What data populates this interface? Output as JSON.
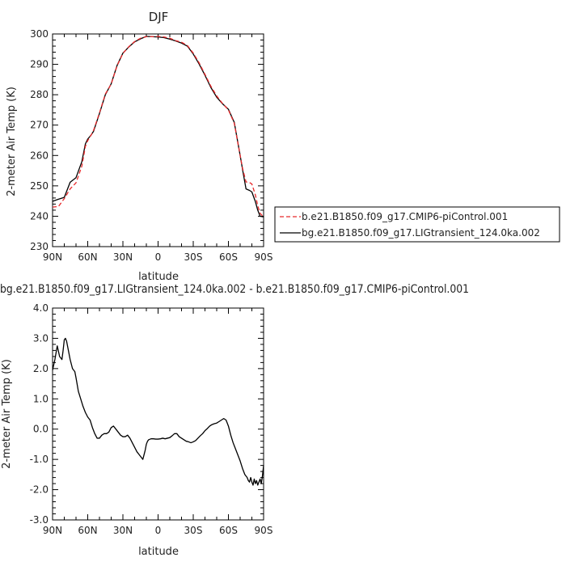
{
  "chart_data": [
    {
      "type": "line",
      "title": "DJF",
      "xlabel": "latitude",
      "ylabel": "2-meter Air Temp (K)",
      "xlim": [
        90,
        -90
      ],
      "ylim": [
        230,
        300
      ],
      "x_ticks": [
        {
          "value": 90,
          "label": "90N"
        },
        {
          "value": 60,
          "label": "60N"
        },
        {
          "value": 30,
          "label": "30N"
        },
        {
          "value": 0,
          "label": "0"
        },
        {
          "value": -30,
          "label": "30S"
        },
        {
          "value": -60,
          "label": "60S"
        },
        {
          "value": -90,
          "label": "90S"
        }
      ],
      "y_ticks": [
        {
          "value": 230,
          "label": "230"
        },
        {
          "value": 240,
          "label": "240"
        },
        {
          "value": 250,
          "label": "250"
        },
        {
          "value": 260,
          "label": "260"
        },
        {
          "value": 270,
          "label": "270"
        },
        {
          "value": 280,
          "label": "280"
        },
        {
          "value": 290,
          "label": "290"
        },
        {
          "value": 300,
          "label": "300"
        }
      ],
      "legend_position": "right",
      "series": [
        {
          "name": "b.e21.B1850.f09_g17.CMIP6-piControl.001",
          "color": "#e8292b",
          "dashed": true,
          "x": [
            90,
            85,
            80,
            75,
            70,
            65,
            62,
            60,
            57,
            55,
            50,
            45,
            40,
            35,
            30,
            25,
            20,
            15,
            10,
            5,
            0,
            -5,
            -10,
            -15,
            -20,
            -25,
            -30,
            -35,
            -40,
            -45,
            -50,
            -55,
            -60,
            -65,
            -70,
            -72,
            -75,
            -78,
            -80,
            -83,
            -85,
            -87,
            -90
          ],
          "y": [
            243.0,
            243.2,
            245.8,
            249.0,
            251.0,
            256.5,
            263.0,
            264.9,
            266.8,
            268.3,
            274.0,
            280.2,
            283.5,
            289.5,
            293.6,
            295.8,
            297.5,
            298.6,
            299.1,
            299.1,
            299.2,
            299.0,
            298.6,
            297.8,
            297.3,
            296.2,
            293.7,
            290.5,
            286.7,
            282.8,
            279.6,
            277.1,
            275.0,
            270.6,
            260.0,
            255.9,
            251.3,
            251.1,
            250.6,
            247.0,
            243.5,
            241.0,
            239.7
          ]
        },
        {
          "name": "bg.e21.B1850.f09_g17.LIGtransient_124.0ka.002",
          "color": "#000000",
          "dashed": false,
          "x": [
            90,
            85,
            80,
            75,
            70,
            65,
            62,
            60,
            57,
            55,
            50,
            45,
            40,
            35,
            30,
            25,
            20,
            15,
            10,
            5,
            0,
            -5,
            -10,
            -15,
            -20,
            -25,
            -30,
            -35,
            -40,
            -45,
            -50,
            -55,
            -60,
            -65,
            -70,
            -72,
            -75,
            -78,
            -80,
            -83,
            -85,
            -87,
            -90
          ],
          "y": [
            244.9,
            245.6,
            246.2,
            251.2,
            252.7,
            258.0,
            263.8,
            265.4,
            266.8,
            268.0,
            273.8,
            280.0,
            283.6,
            289.6,
            293.7,
            295.7,
            297.4,
            298.4,
            299.2,
            299.1,
            299.0,
            298.8,
            298.3,
            297.7,
            297.0,
            296.0,
            293.4,
            290.1,
            286.4,
            282.4,
            279.2,
            277.0,
            275.2,
            270.9,
            260.0,
            255.5,
            249.0,
            248.5,
            248.0,
            244.8,
            242.0,
            240.0,
            239.8
          ]
        }
      ]
    },
    {
      "type": "line",
      "title": "bg.e21.B1850.f09_g17.LIGtransient_124.0ka.002 - b.e21.B1850.f09_g17.CMIP6-piControl.001",
      "xlabel": "latitude",
      "ylabel": "2-meter Air Temp (K)",
      "xlim": [
        90,
        -90
      ],
      "ylim": [
        -3.0,
        4.0
      ],
      "x_ticks": [
        {
          "value": 90,
          "label": "90N"
        },
        {
          "value": 60,
          "label": "60N"
        },
        {
          "value": 30,
          "label": "30N"
        },
        {
          "value": 0,
          "label": "0"
        },
        {
          "value": -30,
          "label": "30S"
        },
        {
          "value": -60,
          "label": "60S"
        },
        {
          "value": -90,
          "label": "90S"
        }
      ],
      "y_ticks": [
        {
          "value": -3.0,
          "label": "-3.0"
        },
        {
          "value": -2.0,
          "label": "-2.0"
        },
        {
          "value": -1.0,
          "label": "-1.0"
        },
        {
          "value": 0.0,
          "label": "0.0"
        },
        {
          "value": 1.0,
          "label": "1.0"
        },
        {
          "value": 2.0,
          "label": "2.0"
        },
        {
          "value": 3.0,
          "label": "3.0"
        },
        {
          "value": 4.0,
          "label": "4.0"
        }
      ],
      "series": [
        {
          "color": "#000000",
          "dashed": false,
          "x": [
            90,
            88,
            86,
            84,
            82,
            81,
            80,
            79,
            78,
            77,
            76,
            75,
            74,
            73,
            72,
            71,
            70,
            68,
            66,
            64,
            62,
            60,
            58,
            56,
            54,
            52,
            50,
            48,
            46,
            44,
            42,
            40,
            38,
            36,
            34,
            32,
            30,
            28,
            26,
            24,
            22,
            20,
            18,
            16,
            15,
            14,
            13,
            12,
            11,
            10,
            9,
            8,
            6,
            4,
            2,
            0,
            -2,
            -4,
            -6,
            -8,
            -10,
            -12,
            -14,
            -16,
            -18,
            -20,
            -22,
            -24,
            -26,
            -28,
            -30,
            -32,
            -34,
            -36,
            -38,
            -40,
            -42,
            -44,
            -46,
            -48,
            -50,
            -52,
            -54,
            -56,
            -58,
            -60,
            -62,
            -64,
            -66,
            -68,
            -70,
            -72,
            -74,
            -76,
            -77,
            -78,
            -79,
            -80,
            -81,
            -82,
            -83,
            -84,
            -85,
            -86,
            -87,
            -88,
            -89,
            -90
          ],
          "y": [
            1.95,
            2.3,
            2.75,
            2.4,
            2.3,
            2.6,
            2.95,
            3.0,
            2.9,
            2.7,
            2.5,
            2.3,
            2.15,
            2.0,
            1.95,
            1.9,
            1.7,
            1.25,
            1.0,
            0.75,
            0.55,
            0.4,
            0.3,
            0.05,
            -0.15,
            -0.3,
            -0.3,
            -0.2,
            -0.15,
            -0.15,
            -0.1,
            0.05,
            0.1,
            0.0,
            -0.1,
            -0.2,
            -0.25,
            -0.25,
            -0.2,
            -0.3,
            -0.45,
            -0.6,
            -0.75,
            -0.85,
            -0.9,
            -0.95,
            -1.0,
            -0.85,
            -0.7,
            -0.5,
            -0.4,
            -0.35,
            -0.32,
            -0.32,
            -0.33,
            -0.33,
            -0.32,
            -0.3,
            -0.32,
            -0.3,
            -0.28,
            -0.22,
            -0.15,
            -0.15,
            -0.25,
            -0.3,
            -0.35,
            -0.4,
            -0.42,
            -0.45,
            -0.42,
            -0.38,
            -0.3,
            -0.22,
            -0.15,
            -0.05,
            0.02,
            0.1,
            0.15,
            0.18,
            0.2,
            0.25,
            0.3,
            0.35,
            0.3,
            0.1,
            -0.2,
            -0.45,
            -0.65,
            -0.85,
            -1.05,
            -1.3,
            -1.5,
            -1.6,
            -1.7,
            -1.75,
            -1.6,
            -1.75,
            -1.85,
            -1.65,
            -1.8,
            -1.7,
            -1.85,
            -1.75,
            -1.65,
            -1.8,
            -1.55,
            -1.2
          ]
        }
      ]
    }
  ]
}
